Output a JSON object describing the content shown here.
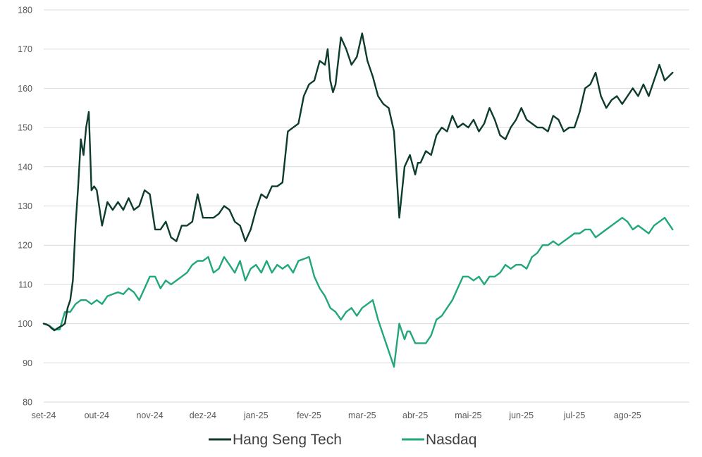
{
  "chart_data": {
    "type": "line",
    "ylim": [
      80,
      180
    ],
    "yticks": [
      80,
      90,
      100,
      110,
      120,
      130,
      140,
      150,
      160,
      170,
      180
    ],
    "categories": [
      "set-24",
      "out-24",
      "nov-24",
      "dez-24",
      "jan-25",
      "fev-25",
      "mar-25",
      "abr-25",
      "mai-25",
      "jun-25",
      "jul-25",
      "ago-25"
    ],
    "grid": true,
    "legend_position": "bottom",
    "series": [
      {
        "name": "Hang Seng Tech",
        "color": "#0d3b2e",
        "x": [
          0,
          0.05,
          0.1,
          0.15,
          0.2,
          0.28,
          0.35,
          0.4,
          0.45,
          0.5,
          0.55,
          0.6,
          0.65,
          0.7,
          0.75,
          0.8,
          0.85,
          0.9,
          0.95,
          1.0,
          1.1,
          1.2,
          1.3,
          1.4,
          1.5,
          1.6,
          1.7,
          1.8,
          1.9,
          2.0,
          2.1,
          2.2,
          2.3,
          2.4,
          2.5,
          2.6,
          2.7,
          2.8,
          2.9,
          3.0,
          3.1,
          3.2,
          3.3,
          3.4,
          3.5,
          3.6,
          3.7,
          3.8,
          3.9,
          4.0,
          4.1,
          4.2,
          4.3,
          4.4,
          4.5,
          4.6,
          4.7,
          4.8,
          4.9,
          5.0,
          5.1,
          5.2,
          5.3,
          5.35,
          5.4,
          5.45,
          5.5,
          5.6,
          5.7,
          5.8,
          5.9,
          6.0,
          6.1,
          6.2,
          6.3,
          6.4,
          6.5,
          6.6,
          6.7,
          6.8,
          6.9,
          7.0,
          7.05,
          7.1,
          7.2,
          7.3,
          7.4,
          7.5,
          7.6,
          7.7,
          7.8,
          7.9,
          8.0,
          8.1,
          8.2,
          8.3,
          8.4,
          8.5,
          8.6,
          8.7,
          8.8,
          8.9,
          9.0,
          9.1,
          9.2,
          9.3,
          9.4,
          9.5,
          9.6,
          9.7,
          9.8,
          9.9,
          10.0,
          10.1,
          10.2,
          10.3,
          10.4,
          10.5,
          10.6,
          10.7,
          10.8,
          10.9,
          11.0,
          11.1,
          11.2,
          11.3,
          11.4,
          11.5,
          11.6,
          11.7,
          11.85
        ],
        "values": [
          100,
          99.8,
          99.5,
          98.8,
          98.3,
          99,
          99.5,
          100,
          104,
          106,
          111,
          125,
          135,
          147,
          143,
          150,
          154,
          134,
          135,
          134,
          125,
          131,
          129,
          131,
          129,
          132,
          129,
          130,
          134,
          133,
          124,
          124,
          126,
          122,
          121,
          125,
          125,
          126,
          133,
          127,
          127,
          127,
          128,
          130,
          129,
          126,
          125,
          121,
          124,
          129,
          133,
          132,
          135,
          135,
          136,
          149,
          150,
          151,
          158,
          161,
          162,
          167,
          166,
          170,
          162,
          159,
          161,
          173,
          170,
          166,
          168,
          174,
          167,
          163,
          158,
          156,
          155,
          149,
          127,
          140,
          143,
          138,
          141,
          141,
          144,
          143,
          148,
          150,
          149,
          153,
          150,
          151,
          150,
          152,
          149,
          151,
          155,
          152,
          148,
          147,
          150,
          152,
          155,
          152,
          151,
          150,
          150,
          149,
          153,
          152,
          149,
          150,
          150,
          154,
          160,
          161,
          164,
          158,
          155,
          157,
          158,
          156,
          158,
          160,
          158,
          161,
          158,
          162,
          166,
          162,
          164
        ]
      },
      {
        "name": "Nasdaq",
        "color": "#22a77a",
        "x": [
          0,
          0.1,
          0.2,
          0.3,
          0.4,
          0.5,
          0.6,
          0.7,
          0.8,
          0.9,
          1.0,
          1.1,
          1.2,
          1.3,
          1.4,
          1.5,
          1.6,
          1.7,
          1.8,
          1.9,
          2.0,
          2.1,
          2.2,
          2.3,
          2.4,
          2.5,
          2.6,
          2.7,
          2.8,
          2.9,
          3.0,
          3.1,
          3.2,
          3.3,
          3.4,
          3.5,
          3.6,
          3.7,
          3.8,
          3.9,
          4.0,
          4.1,
          4.2,
          4.3,
          4.4,
          4.5,
          4.6,
          4.7,
          4.8,
          4.9,
          5.0,
          5.1,
          5.2,
          5.3,
          5.4,
          5.5,
          5.6,
          5.7,
          5.8,
          5.9,
          6.0,
          6.1,
          6.2,
          6.3,
          6.4,
          6.5,
          6.6,
          6.7,
          6.8,
          6.85,
          6.9,
          7.0,
          7.1,
          7.2,
          7.3,
          7.4,
          7.5,
          7.6,
          7.7,
          7.8,
          7.9,
          8.0,
          8.1,
          8.2,
          8.3,
          8.4,
          8.5,
          8.6,
          8.7,
          8.8,
          8.9,
          9.0,
          9.1,
          9.2,
          9.3,
          9.4,
          9.5,
          9.6,
          9.7,
          9.8,
          9.9,
          10.0,
          10.1,
          10.2,
          10.3,
          10.4,
          10.5,
          10.6,
          10.7,
          10.8,
          10.9,
          11.0,
          11.1,
          11.2,
          11.3,
          11.4,
          11.5,
          11.6,
          11.7,
          11.85
        ],
        "values": [
          100,
          99.5,
          98.5,
          98.5,
          103,
          103,
          105,
          106,
          106,
          105,
          106,
          105,
          107,
          107.5,
          108,
          107.5,
          109,
          108,
          106,
          109,
          112,
          112,
          109,
          111,
          110,
          111,
          112,
          113,
          115,
          116,
          116,
          117,
          113,
          114,
          117,
          115,
          113,
          116,
          111,
          114,
          115,
          113,
          116,
          113,
          115,
          114,
          115,
          113,
          116,
          116.5,
          117,
          112,
          109,
          107,
          104,
          103,
          101,
          103,
          104,
          102,
          104,
          105,
          106,
          101,
          97,
          93,
          89,
          100,
          96,
          98,
          98,
          95,
          95,
          95,
          97,
          101,
          102,
          104,
          106,
          109,
          112,
          112,
          111,
          112,
          110,
          112,
          112,
          113,
          115,
          114,
          115,
          115,
          114,
          117,
          118,
          120,
          120,
          121,
          120,
          121,
          122,
          123,
          123,
          124,
          124,
          122,
          123,
          124,
          125,
          126,
          127,
          126,
          124,
          125,
          124,
          123,
          125,
          126,
          127,
          124
        ]
      }
    ]
  }
}
